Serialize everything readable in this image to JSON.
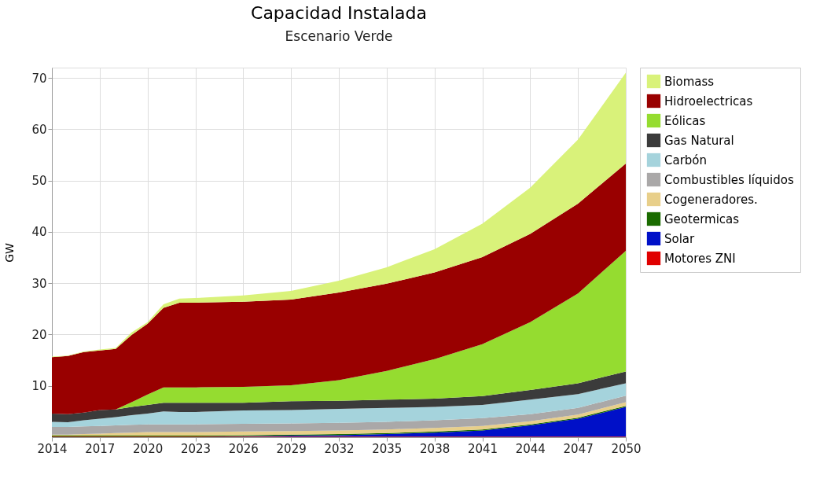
{
  "chart_data": {
    "type": "area",
    "title": "Capacidad Instalada",
    "subtitle": "Escenario Verde",
    "ylabel": "GW",
    "stacked": true,
    "x": [
      2014,
      2015,
      2016,
      2017,
      2018,
      2019,
      2020,
      2021,
      2022,
      2023,
      2026,
      2029,
      2032,
      2035,
      2038,
      2041,
      2044,
      2047,
      2050
    ],
    "series": [
      {
        "name": "Motores ZNI",
        "color": "#e00000",
        "values": [
          0.1,
          0.1,
          0.1,
          0.1,
          0.1,
          0.1,
          0.1,
          0.1,
          0.1,
          0.1,
          0.1,
          0.1,
          0.1,
          0.1,
          0.1,
          0.1,
          0.1,
          0.1,
          0.1
        ]
      },
      {
        "name": "Solar",
        "color": "#0010c8",
        "values": [
          0,
          0,
          0,
          0,
          0,
          0,
          0,
          0,
          0,
          0,
          0.1,
          0.2,
          0.3,
          0.5,
          0.8,
          1.2,
          2.2,
          3.5,
          5.8
        ]
      },
      {
        "name": "Geotermicas",
        "color": "#1a6b00",
        "values": [
          0.2,
          0.2,
          0.2,
          0.2,
          0.2,
          0.2,
          0.2,
          0.2,
          0.2,
          0.2,
          0.2,
          0.2,
          0.2,
          0.2,
          0.2,
          0.2,
          0.2,
          0.2,
          0.2
        ]
      },
      {
        "name": "Cogeneradores.",
        "color": "#e8cf8a",
        "values": [
          0.2,
          0.2,
          0.3,
          0.4,
          0.5,
          0.6,
          0.7,
          0.7,
          0.7,
          0.7,
          0.7,
          0.7,
          0.7,
          0.7,
          0.7,
          0.7,
          0.6,
          0.6,
          0.7
        ]
      },
      {
        "name": "Combustibles líquidos",
        "color": "#aaa8a8",
        "values": [
          1.5,
          1.5,
          1.5,
          1.5,
          1.5,
          1.5,
          1.5,
          1.5,
          1.5,
          1.5,
          1.5,
          1.5,
          1.5,
          1.5,
          1.5,
          1.5,
          1.4,
          1.3,
          1.3
        ]
      },
      {
        "name": "Carbón",
        "color": "#a5d3dc",
        "values": [
          1.0,
          0.9,
          1.2,
          1.4,
          1.6,
          1.9,
          2.1,
          2.5,
          2.4,
          2.4,
          2.6,
          2.6,
          2.7,
          2.7,
          2.6,
          2.6,
          2.8,
          2.7,
          2.4
        ]
      },
      {
        "name": "Gas Natural",
        "color": "#3b3b3b",
        "values": [
          1.6,
          1.6,
          1.5,
          1.7,
          1.5,
          1.6,
          1.7,
          1.7,
          1.8,
          1.8,
          1.5,
          1.7,
          1.6,
          1.6,
          1.6,
          1.7,
          1.9,
          2.1,
          2.3
        ]
      },
      {
        "name": "Eólicas",
        "color": "#95dc30",
        "values": [
          0,
          0,
          0,
          0,
          0,
          0.9,
          2.0,
          3.0,
          3.0,
          3.0,
          3.1,
          3.1,
          4.0,
          5.6,
          7.7,
          10.1,
          13.2,
          17.5,
          23.5
        ]
      },
      {
        "name": "Hidroelectricas",
        "color": "#990000",
        "values": [
          11.0,
          11.3,
          11.8,
          11.6,
          11.8,
          13.1,
          13.8,
          15.5,
          16.5,
          16.5,
          16.6,
          16.7,
          17.1,
          17.0,
          16.9,
          17.0,
          17.2,
          17.5,
          17.0
        ]
      },
      {
        "name": "Biomass",
        "color": "#d9f27a",
        "values": [
          0.1,
          0.1,
          0.1,
          0.2,
          0.2,
          0.5,
          0.3,
          0.7,
          0.8,
          0.9,
          1.2,
          1.7,
          2.3,
          3.2,
          4.5,
          6.5,
          9.0,
          12.5,
          17.7
        ]
      }
    ],
    "xlim": [
      2014,
      2050
    ],
    "xticks": [
      2014,
      2017,
      2020,
      2023,
      2026,
      2029,
      2032,
      2035,
      2038,
      2041,
      2044,
      2047,
      2050
    ],
    "ylim": [
      0,
      72
    ],
    "yticks": [
      10,
      20,
      30,
      40,
      50,
      60,
      70
    ],
    "grid": true,
    "legend": "right"
  }
}
